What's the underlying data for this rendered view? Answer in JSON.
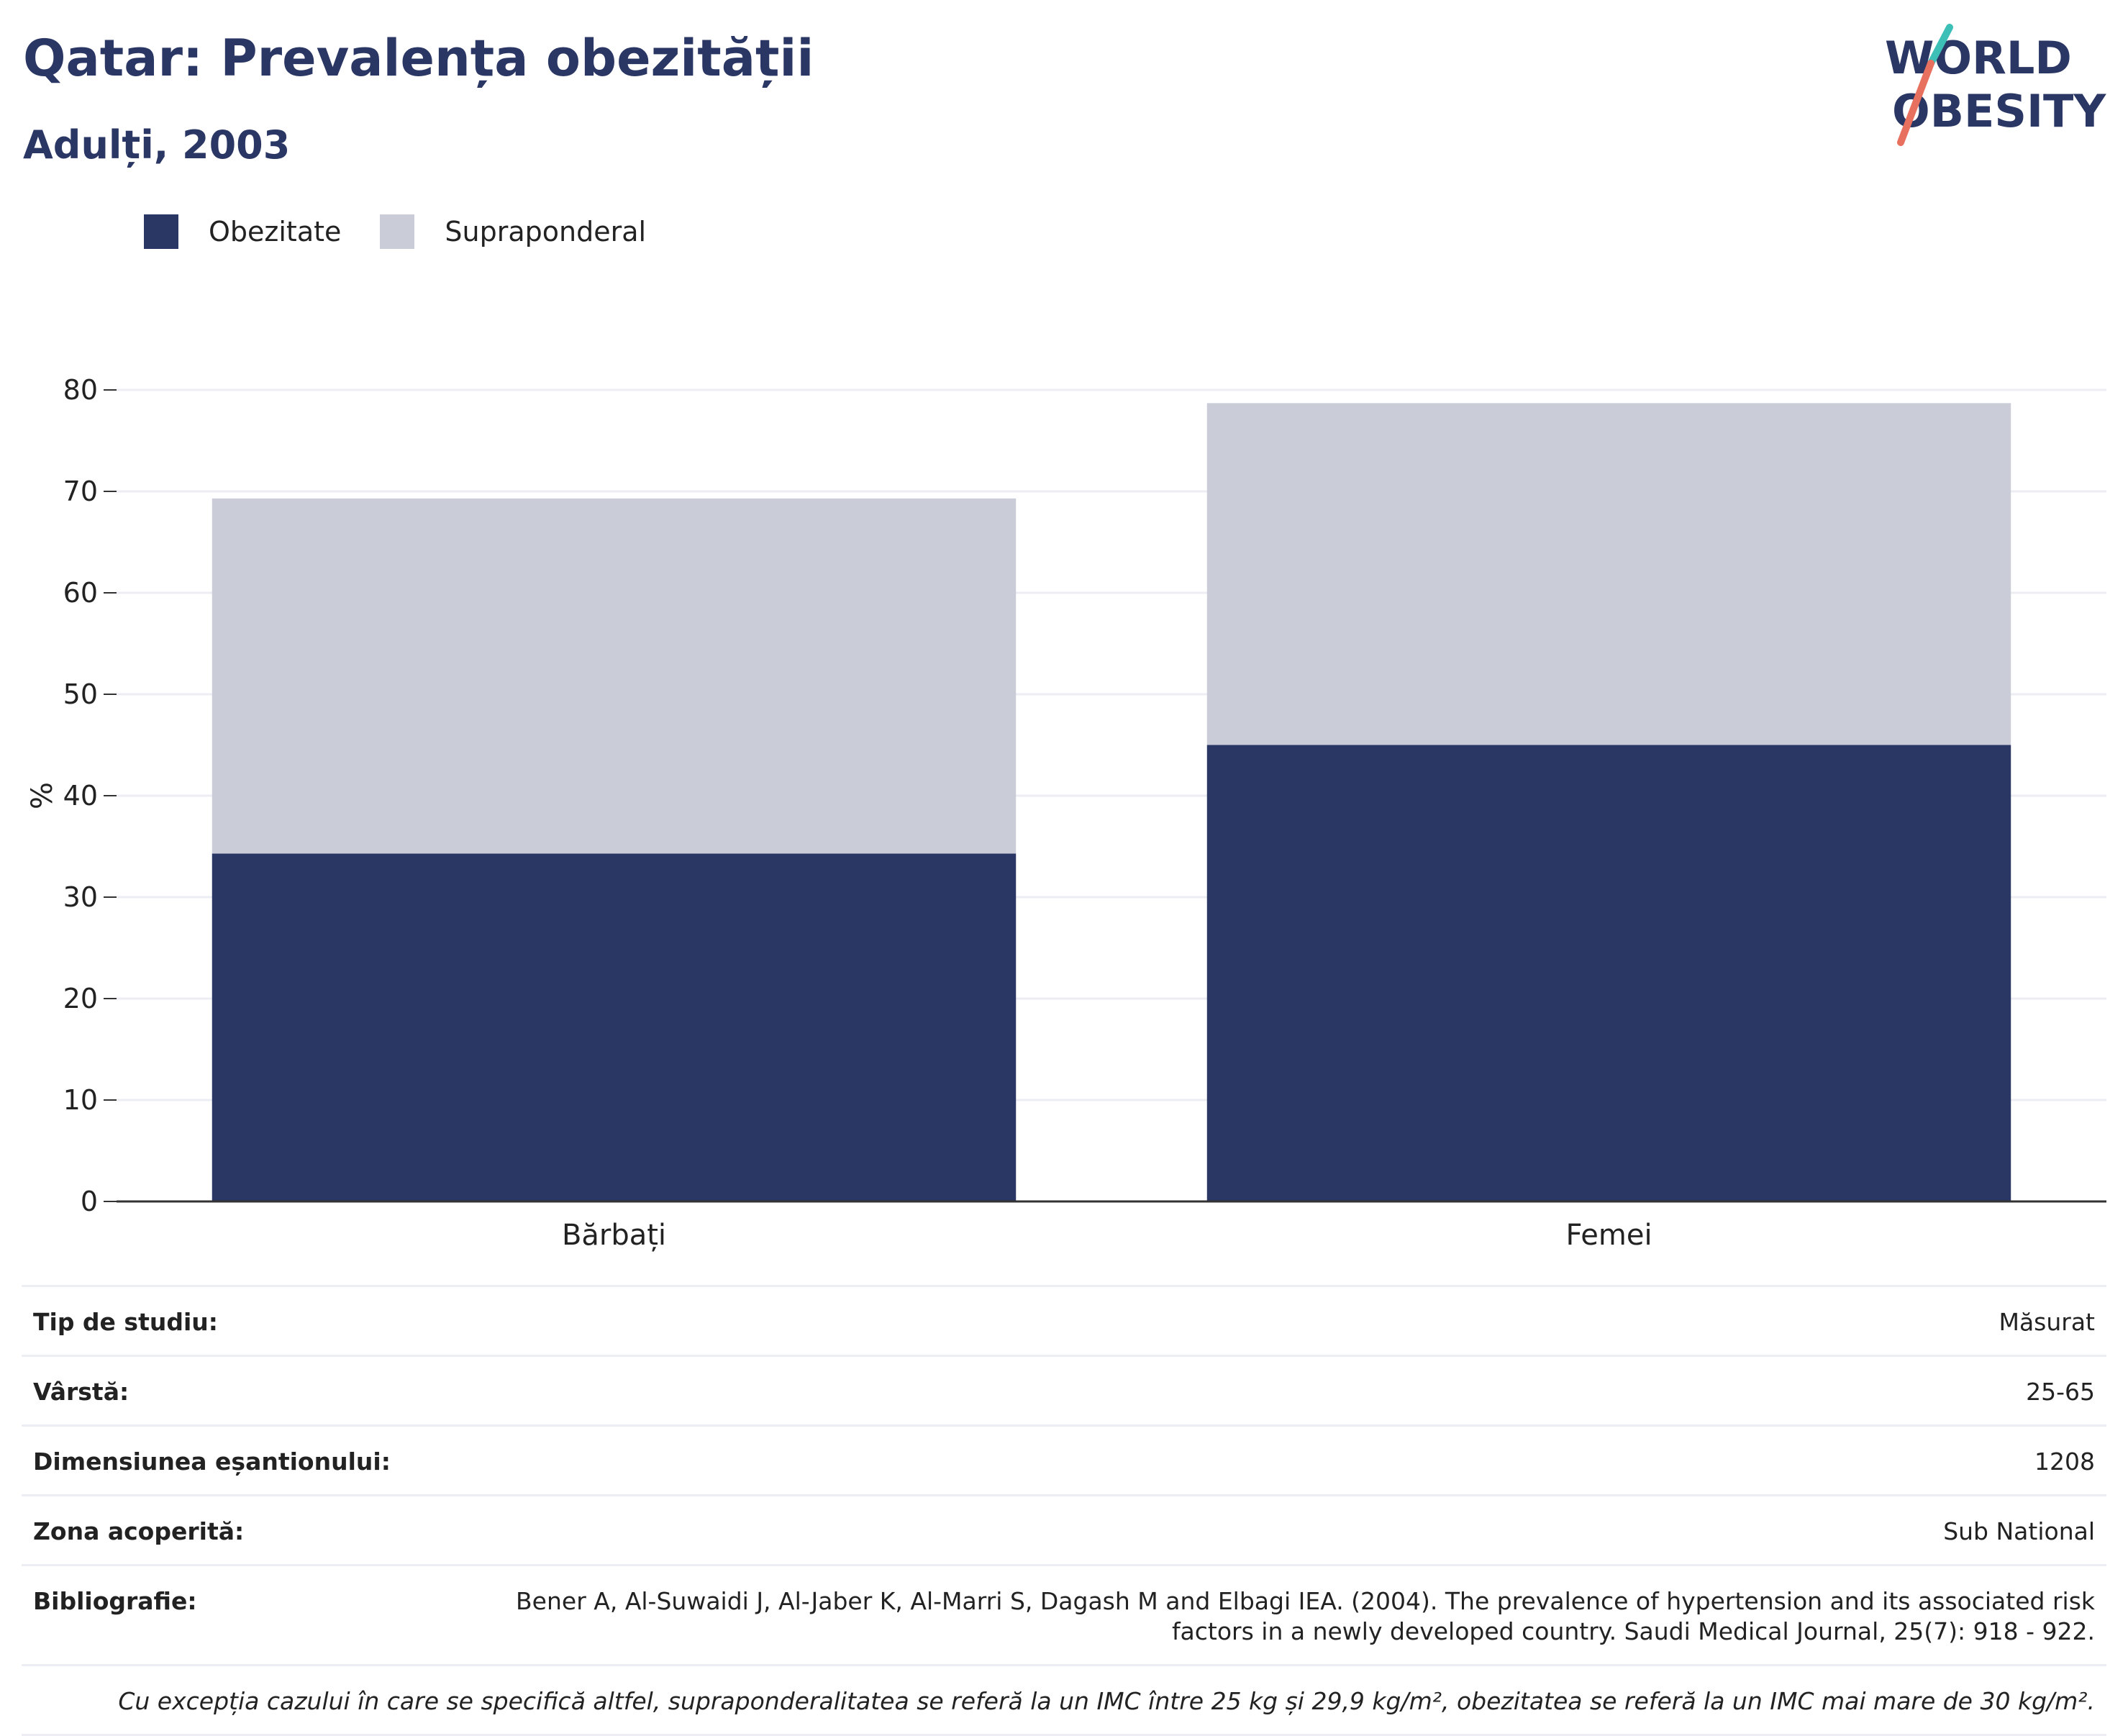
{
  "title": "Qatar: Prevalența obezității",
  "subtitle": "Adulți, 2003",
  "logo": {
    "line1": "WORLD",
    "line2": "OBESITY"
  },
  "legend": [
    {
      "label": "Obezitate",
      "color": "#2a3663"
    },
    {
      "label": "Supraponderal",
      "color": "#cacdd8"
    }
  ],
  "chart_data": {
    "type": "bar",
    "stacked": true,
    "categories": [
      "Bărbați",
      "Femei"
    ],
    "series": [
      {
        "name": "Obezitate",
        "values": [
          34.3,
          45.0
        ],
        "color": "#2a3663"
      },
      {
        "name": "Supraponderal",
        "values": [
          35.0,
          33.7
        ],
        "color": "#cacdd8"
      }
    ],
    "ylabel": "%",
    "ylim": [
      0,
      80
    ],
    "yticks": [
      0,
      10,
      20,
      30,
      40,
      50,
      60,
      70,
      80
    ],
    "grid": true,
    "legend_position": "top-left"
  },
  "info": [
    {
      "key": "Tip de studiu:",
      "value": "Măsurat"
    },
    {
      "key": "Vârstă:",
      "value": "25-65"
    },
    {
      "key": "Dimensiunea eșantionului:",
      "value": "1208"
    },
    {
      "key": "Zona acoperită:",
      "value": "Sub National"
    },
    {
      "key": "Bibliografie:",
      "value": "Bener A, Al-Suwaidi J, Al-Jaber K, Al-Marri S, Dagash M and Elbagi IEA. (2004). The prevalence of hypertension and its associated risk factors in a newly developed country. Saudi Medical Journal, 25(7): 918 - 922."
    }
  ],
  "footnote": "Cu excepția cazului în care se specifică altfel, supraponderalitatea se referă la un IMC între 25 kg și 29,9 kg/m², obezitatea se referă la un IMC mai mare de 30 kg/m²."
}
